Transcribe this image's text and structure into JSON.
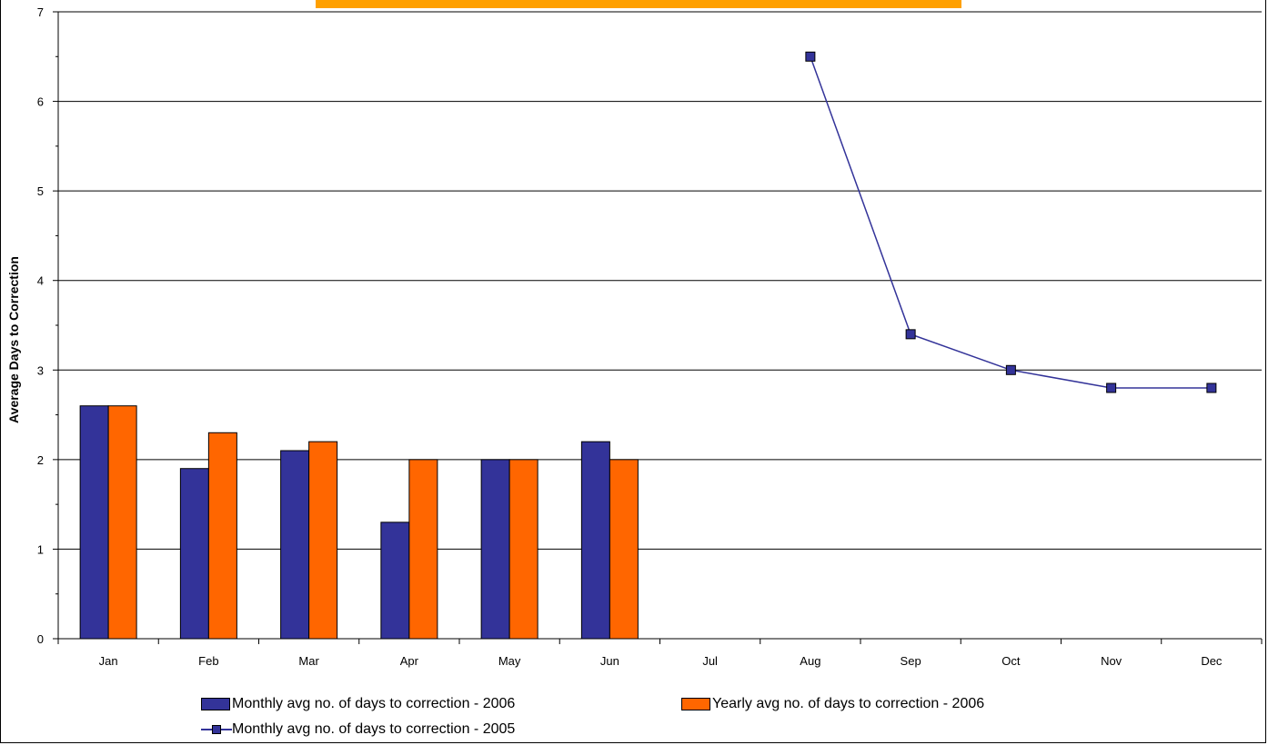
{
  "chart_data": {
    "type": "bar",
    "title": "",
    "xlabel": "",
    "ylabel": "Average Days to Correction",
    "ylim": [
      0,
      7
    ],
    "yticks": [
      0,
      1,
      2,
      3,
      4,
      5,
      6,
      7
    ],
    "grid": true,
    "legend_position": "bottom",
    "categories": [
      "Jan",
      "Feb",
      "Mar",
      "Apr",
      "May",
      "Jun",
      "Jul",
      "Aug",
      "Sep",
      "Oct",
      "Nov",
      "Dec"
    ],
    "series": [
      {
        "name": "Monthly avg no. of days to correction - 2006",
        "kind": "bar",
        "color": "#333399",
        "values": [
          2.6,
          1.9,
          2.1,
          1.3,
          2.0,
          2.2,
          null,
          null,
          null,
          null,
          null,
          null
        ]
      },
      {
        "name": "Yearly avg no. of days to correction - 2006",
        "kind": "bar",
        "color": "#ff6600",
        "values": [
          2.6,
          2.3,
          2.2,
          2.0,
          2.0,
          2.0,
          null,
          null,
          null,
          null,
          null,
          null
        ]
      },
      {
        "name": "Monthly avg no. of days to correction - 2005",
        "kind": "line",
        "color": "#333399",
        "values": [
          null,
          null,
          null,
          null,
          null,
          null,
          null,
          6.5,
          3.4,
          3.0,
          2.8,
          2.8
        ]
      }
    ],
    "banner_color": "#ffa000"
  }
}
